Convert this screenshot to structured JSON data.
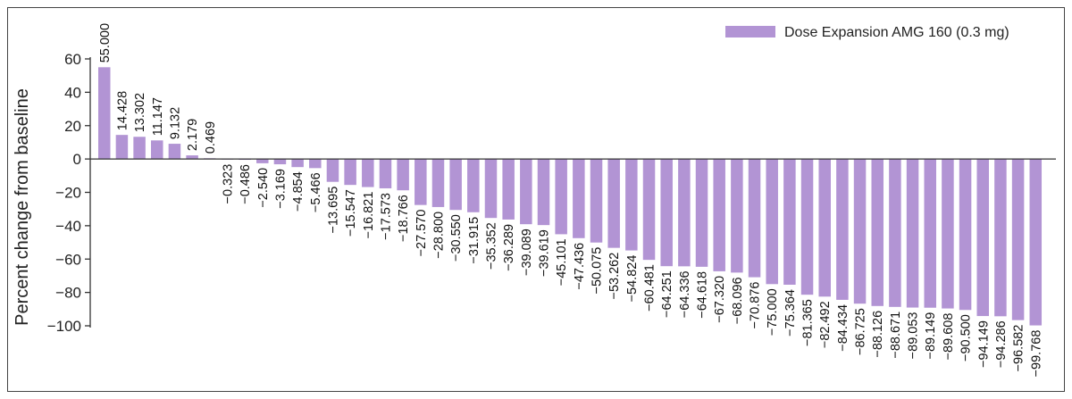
{
  "chart_data": {
    "type": "bar",
    "ylabel": "Percent change from baseline",
    "xlabel": "",
    "title": "",
    "ylim": [
      -100,
      60
    ],
    "yticks": [
      60,
      40,
      20,
      0,
      -20,
      -40,
      -60,
      -80,
      -100
    ],
    "ytick_labels": [
      "60",
      "40",
      "20",
      "0",
      "−20",
      "−40",
      "−60",
      "−80",
      "−100"
    ],
    "legend_position": "top-right",
    "grid": false,
    "bar_color": "#b294d4",
    "series": [
      {
        "name": "Dose Expansion AMG 160 (0.3 mg)",
        "values": [
          55.0,
          14.428,
          13.302,
          11.147,
          9.132,
          2.179,
          0.469,
          -0.323,
          -0.486,
          -2.54,
          -3.169,
          -4.854,
          -5.466,
          -13.695,
          -15.547,
          -16.821,
          -17.573,
          -18.766,
          -27.57,
          -28.8,
          -30.55,
          -31.915,
          -35.352,
          -36.289,
          -39.089,
          -39.619,
          -45.101,
          -47.436,
          -50.075,
          -53.262,
          -54.824,
          -60.481,
          -64.251,
          -64.336,
          -64.618,
          -67.32,
          -68.096,
          -70.876,
          -75.0,
          -75.364,
          -81.365,
          -82.492,
          -84.434,
          -86.725,
          -88.126,
          -88.671,
          -89.053,
          -89.149,
          -89.608,
          -90.5,
          -94.149,
          -94.286,
          -96.582,
          -99.768
        ],
        "labels": [
          "55.000",
          "14.428",
          "13.302",
          "11.147",
          "9.132",
          "2.179",
          "0.469",
          "−0.323",
          "−0.486",
          "−2.540",
          "−3.169",
          "−4.854",
          "−5.466",
          "−13.695",
          "−15.547",
          "−16.821",
          "−17.573",
          "−18.766",
          "−27.570",
          "−28.800",
          "−30.550",
          "−31.915",
          "−35.352",
          "−36.289",
          "−39.089",
          "−39.619",
          "−45.101",
          "−47.436",
          "−50.075",
          "−53.262",
          "−54.824",
          "−60.481",
          "−64.251",
          "−64.336",
          "−64.618",
          "−67.320",
          "−68.096",
          "−70.876",
          "−75.000",
          "−75.364",
          "−81.365",
          "−82.492",
          "−84.434",
          "−86.725",
          "−88.126",
          "−88.671",
          "−89.053",
          "−89.149",
          "−89.608",
          "−90.500",
          "−94.149",
          "−94.286",
          "−96.582",
          "−99.768"
        ]
      }
    ]
  }
}
